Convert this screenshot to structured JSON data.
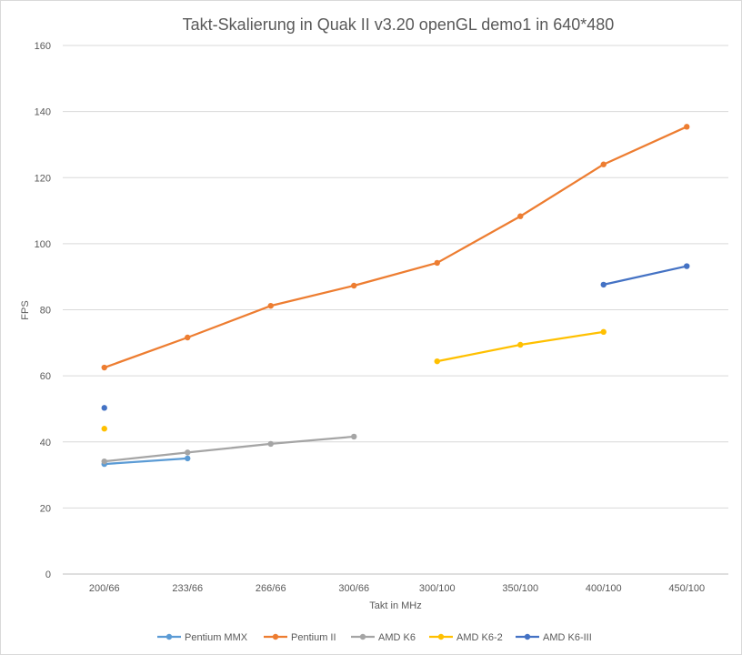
{
  "chart_data": {
    "type": "line",
    "title": "Takt-Skalierung in Quak II v3.20 openGL demo1 in 640*480",
    "xlabel": "Takt in MHz",
    "ylabel": "FPS",
    "ylim": [
      0,
      160
    ],
    "y_ticks": [
      0,
      20,
      40,
      60,
      80,
      100,
      120,
      140,
      160
    ],
    "grid": true,
    "legend_position": "bottom",
    "categories": [
      "200/66",
      "233/66",
      "266/66",
      "300/66",
      "300/100",
      "350/100",
      "400/100",
      "450/100"
    ],
    "series": [
      {
        "name": "Pentium MMX",
        "color": "#5b9bd5",
        "values": [
          33.3,
          35.0,
          null,
          null,
          null,
          null,
          null,
          null
        ]
      },
      {
        "name": "Pentium II",
        "color": "#ed7d31",
        "values": [
          62.5,
          71.6,
          81.2,
          87.3,
          94.2,
          108.3,
          124.0,
          135.4
        ]
      },
      {
        "name": "AMD K6",
        "color": "#a5a5a5",
        "values": [
          34.1,
          36.8,
          39.4,
          41.6,
          null,
          null,
          null,
          null
        ]
      },
      {
        "name": "AMD K6-2",
        "color": "#ffc000",
        "values": [
          44.0,
          null,
          null,
          null,
          64.4,
          69.4,
          73.3,
          null
        ]
      },
      {
        "name": "AMD K6-III",
        "color": "#4472c4",
        "values": [
          50.3,
          null,
          null,
          null,
          null,
          null,
          87.6,
          93.2
        ]
      }
    ]
  }
}
